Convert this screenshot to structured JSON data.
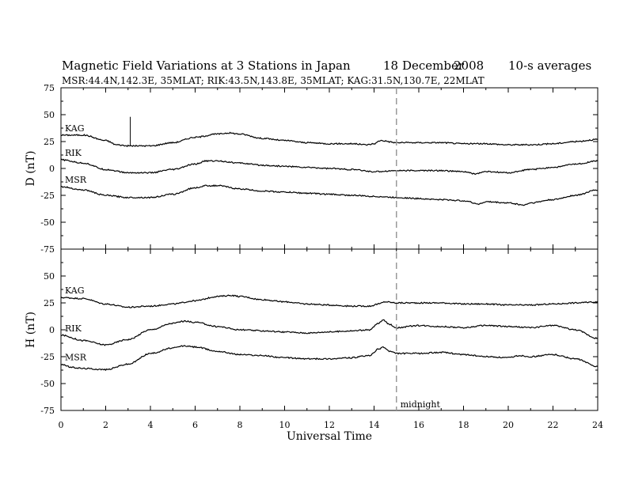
{
  "header": {
    "title": "Magnetic Field Variations at 3 Stations in Japan",
    "date_day": "18",
    "date_month": "December",
    "date_year": "2008",
    "averaging": "10-s averages",
    "stations_line": "MSR:44.4N,142.3E, 35MLAT;  RIK:43.5N,143.8E, 35MLAT;  KAG:31.5N,130.7E, 22MLAT"
  },
  "xaxis": {
    "label": "Universal Time",
    "ticks": [
      "0",
      "2",
      "4",
      "6",
      "8",
      "10",
      "12",
      "14",
      "16",
      "18",
      "20",
      "22",
      "24"
    ]
  },
  "annotations": {
    "midnight_label": "midnight",
    "midnight_ut": 15
  },
  "chart_data": [
    {
      "type": "line",
      "panel": "D",
      "ylabel": "D (nT)",
      "xlim": [
        0,
        24
      ],
      "ylim": [
        -75,
        75
      ],
      "yticks": [
        "75",
        "50",
        "25",
        "0",
        "-25",
        "-50",
        "-75"
      ],
      "grid": false,
      "series": [
        {
          "name": "KAG",
          "x": [
            0,
            1,
            2,
            2.5,
            3,
            3.2,
            4,
            5,
            6,
            7,
            7.5,
            8,
            9,
            10,
            11,
            12,
            13,
            13.7,
            14,
            14.3,
            15,
            16,
            17,
            18,
            19,
            20,
            21,
            22,
            23,
            24
          ],
          "values": [
            31,
            31,
            26,
            22,
            21,
            21,
            21,
            24,
            29,
            32,
            33,
            32,
            28,
            26,
            24,
            23,
            23,
            22,
            23,
            26,
            24,
            24,
            24,
            23,
            23,
            22,
            22,
            23,
            25,
            27
          ],
          "spikes": [
            {
              "x": 3.1,
              "top": 48
            }
          ]
        },
        {
          "name": "RIK",
          "x": [
            0,
            1,
            2,
            3,
            4,
            5,
            6,
            6.5,
            7,
            8,
            9,
            10,
            11,
            12,
            13,
            14,
            15,
            16,
            17,
            18,
            18.5,
            19,
            20,
            21,
            22,
            23,
            24
          ],
          "values": [
            8,
            5,
            -1,
            -4,
            -4,
            -1,
            4,
            7,
            7,
            5,
            3,
            2,
            1,
            0,
            -1,
            -3,
            -2,
            -2,
            -2,
            -3,
            -5,
            -3,
            -4,
            -1,
            1,
            4,
            7
          ]
        },
        {
          "name": "MSR",
          "x": [
            0,
            1,
            2,
            3,
            4,
            5,
            6,
            6.5,
            7,
            8,
            9,
            10,
            11,
            12,
            13,
            14,
            15,
            16,
            17,
            18,
            18.7,
            19,
            20,
            20.7,
            21,
            22,
            23,
            24
          ],
          "values": [
            -17,
            -20,
            -25,
            -27,
            -27,
            -24,
            -18,
            -16,
            -16,
            -19,
            -21,
            -22,
            -23,
            -24,
            -25,
            -26,
            -27,
            -28,
            -29,
            -30,
            -33,
            -31,
            -32,
            -34,
            -32,
            -29,
            -25,
            -20
          ]
        }
      ]
    },
    {
      "type": "line",
      "panel": "H",
      "ylabel": "H (nT)",
      "xlim": [
        0,
        24
      ],
      "ylim": [
        -75,
        75
      ],
      "yticks": [
        "50",
        "25",
        "0",
        "-25",
        "-50",
        "-75"
      ],
      "grid": false,
      "series": [
        {
          "name": "KAG",
          "x": [
            0,
            1,
            2,
            3,
            4,
            5,
            6,
            7,
            7.6,
            8,
            9,
            10,
            11,
            12,
            13,
            13.8,
            14.2,
            14.5,
            15,
            16,
            17,
            18,
            19,
            20,
            21,
            22,
            23,
            24
          ],
          "values": [
            30,
            29,
            24,
            21,
            22,
            24,
            27,
            31,
            32,
            31,
            28,
            26,
            24,
            23,
            22,
            22,
            24,
            26,
            25,
            25,
            25,
            24,
            24,
            23,
            23,
            24,
            25,
            26
          ]
        },
        {
          "name": "RIK",
          "x": [
            0,
            1,
            2,
            3,
            4,
            5,
            5.5,
            6,
            7,
            8,
            9,
            10,
            11,
            12,
            13,
            13.8,
            14.2,
            14.4,
            14.7,
            15,
            16,
            17,
            18,
            19,
            20,
            21,
            22,
            23,
            24
          ],
          "values": [
            -5,
            -10,
            -14,
            -9,
            0,
            6,
            8,
            7,
            3,
            0,
            -1,
            -2,
            -3,
            -2,
            -1,
            0,
            6,
            9,
            5,
            2,
            4,
            3,
            2,
            4,
            3,
            2,
            4,
            0,
            -8
          ]
        },
        {
          "name": "MSR",
          "x": [
            0,
            0.5,
            1,
            2,
            3,
            4,
            5,
            5.5,
            6,
            7,
            8,
            9,
            10,
            11,
            12,
            13,
            13.8,
            14.2,
            14.4,
            14.7,
            15,
            16,
            17,
            18,
            19,
            20,
            20.5,
            21,
            22,
            23,
            24
          ],
          "values": [
            -32,
            -35,
            -36,
            -37,
            -32,
            -22,
            -17,
            -15,
            -16,
            -20,
            -23,
            -24,
            -26,
            -27,
            -27,
            -26,
            -24,
            -18,
            -16,
            -20,
            -22,
            -22,
            -21,
            -23,
            -25,
            -26,
            -24,
            -25,
            -23,
            -27,
            -34
          ]
        }
      ]
    }
  ]
}
